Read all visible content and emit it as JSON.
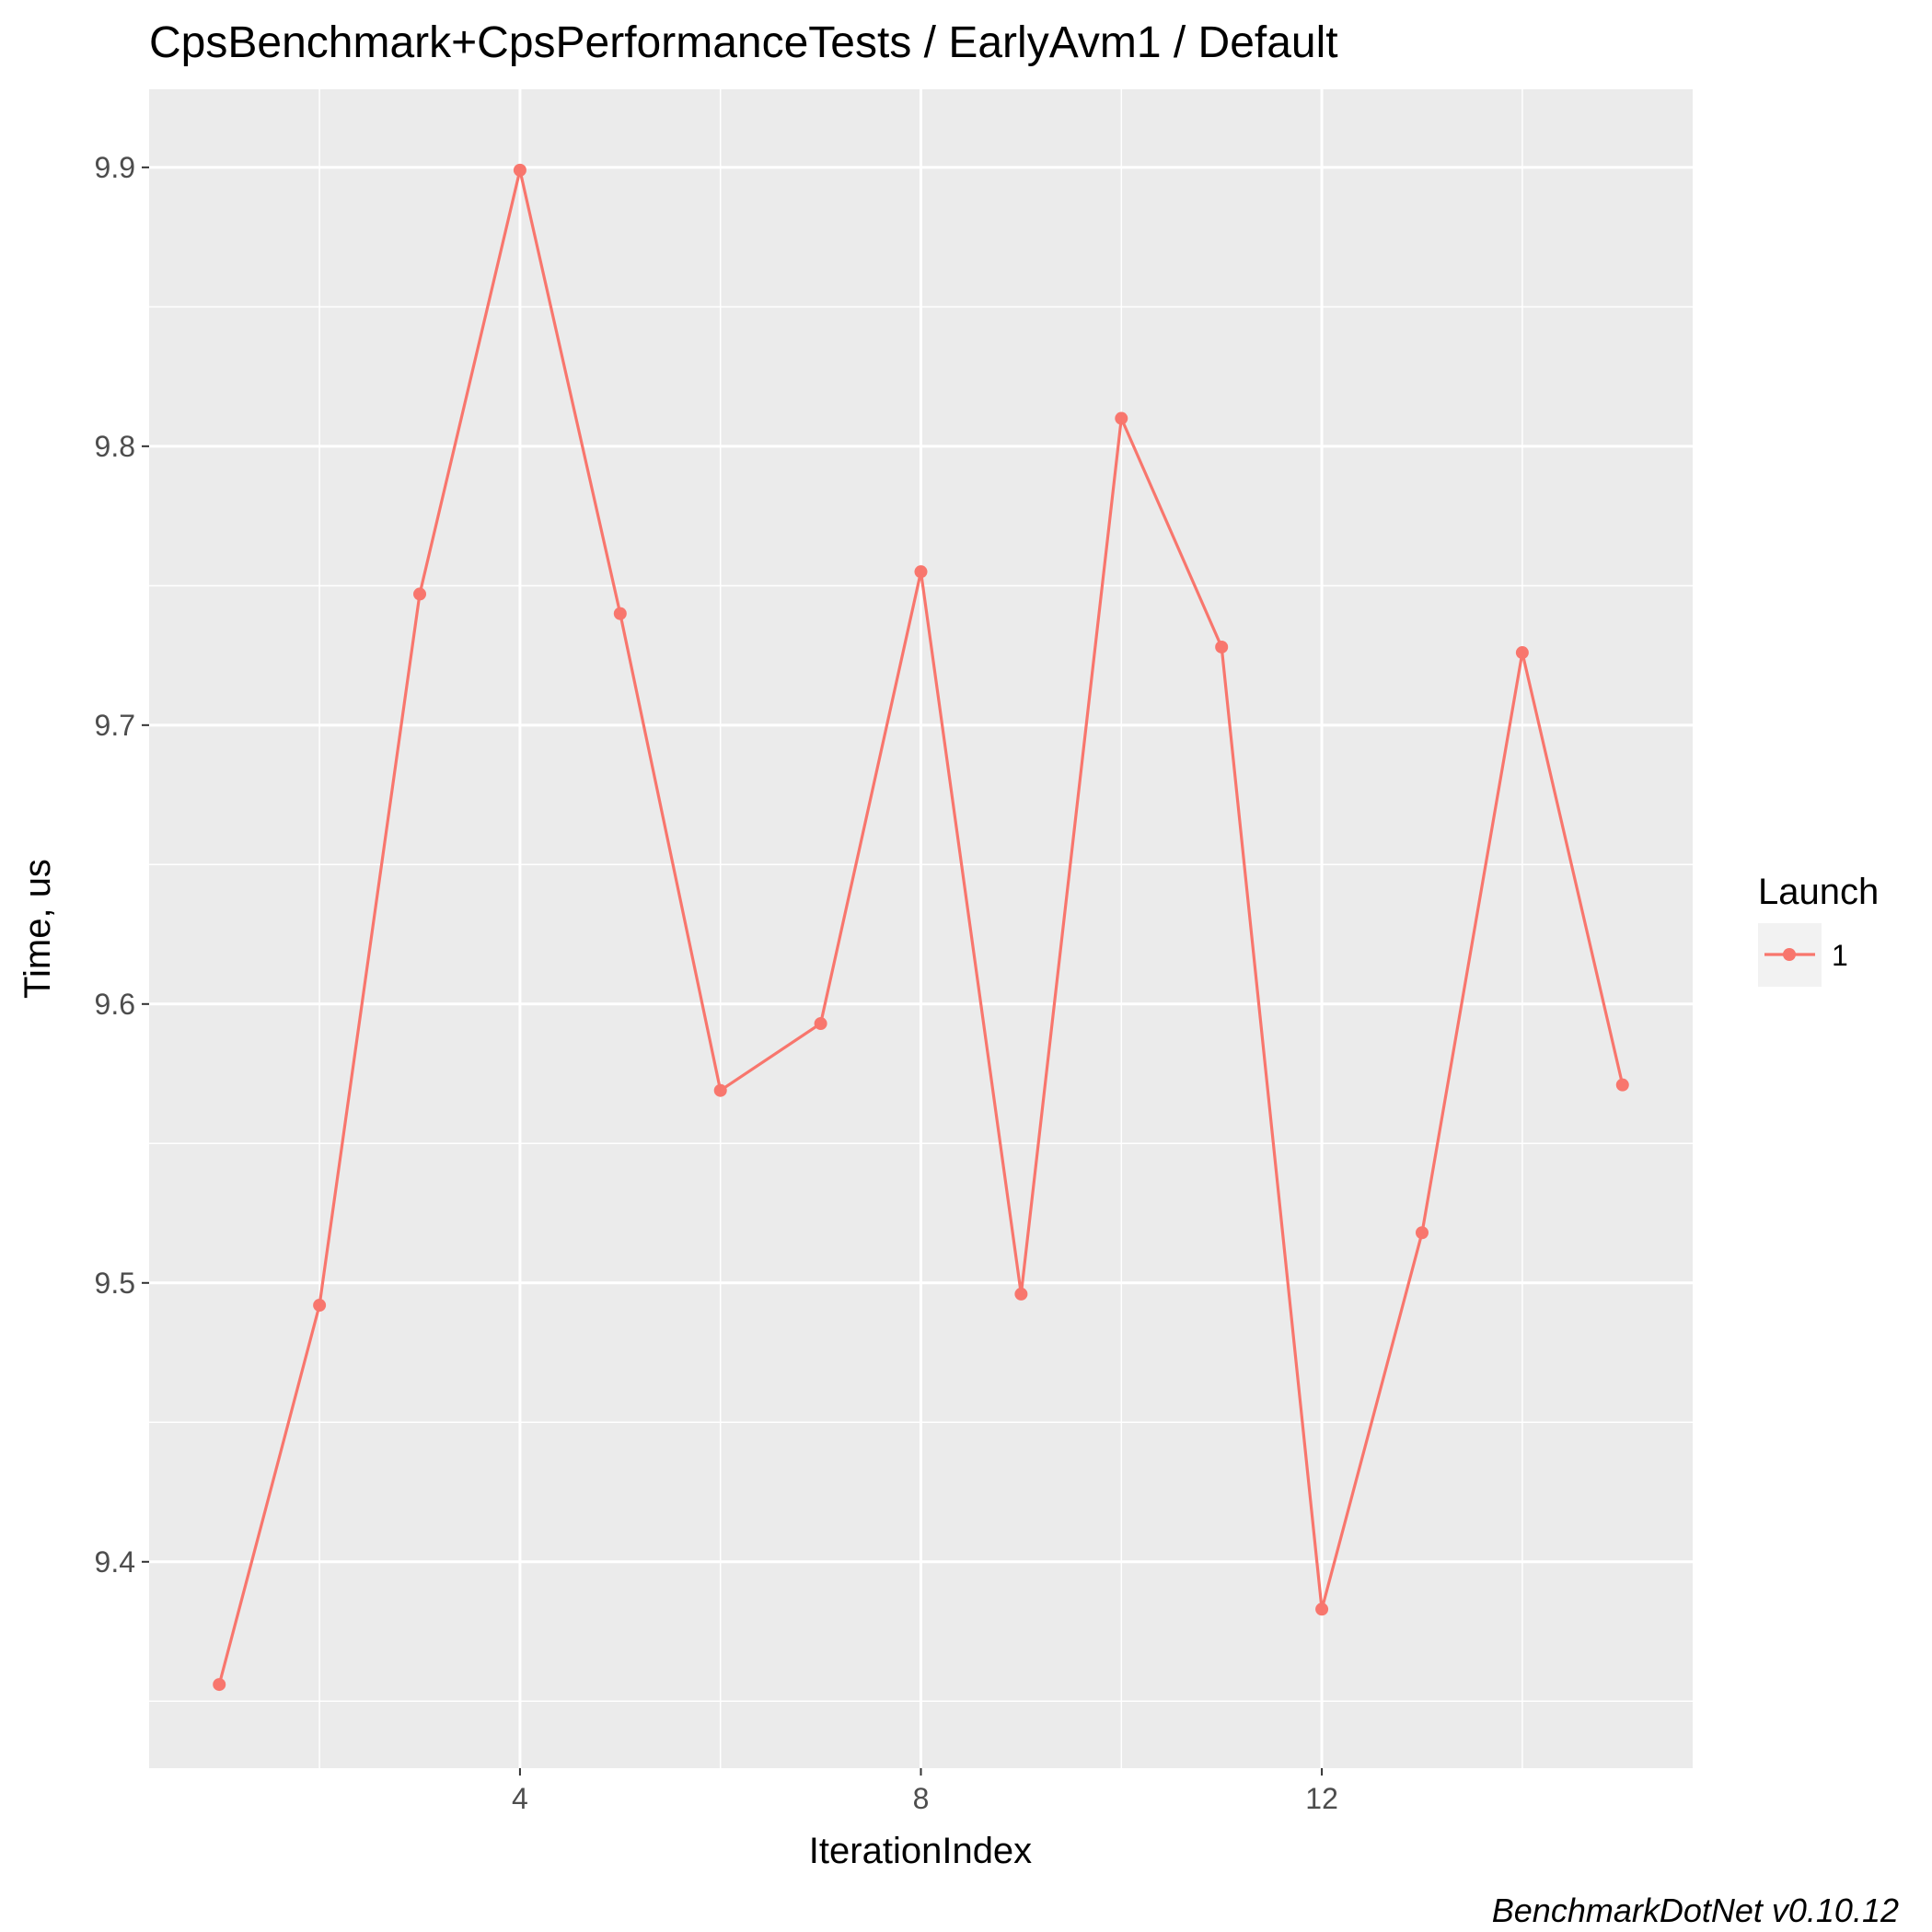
{
  "chart_data": {
    "type": "line",
    "title": "CpsBenchmark+CpsPerformanceTests / EarlyAvm1 / Default",
    "xlabel": "IterationIndex",
    "ylabel": "Time, us",
    "xlim": [
      0.3,
      15.7
    ],
    "ylim": [
      9.326,
      9.928
    ],
    "x_ticks": [
      4,
      8,
      12
    ],
    "x_tick_labels": [
      "4",
      "8",
      "12"
    ],
    "y_ticks": [
      9.4,
      9.5,
      9.6,
      9.7,
      9.8,
      9.9
    ],
    "y_tick_labels": [
      "9.4",
      "9.5",
      "9.6",
      "9.7",
      "9.8",
      "9.9"
    ],
    "grid": true,
    "legend": {
      "title": "Launch",
      "placement": "right"
    },
    "series": [
      {
        "name": "1",
        "color": "#f8766d",
        "x": [
          1,
          2,
          3,
          4,
          5,
          6,
          7,
          8,
          9,
          10,
          11,
          12,
          13,
          14,
          15
        ],
        "y": [
          9.356,
          9.492,
          9.747,
          9.899,
          9.74,
          9.569,
          9.593,
          9.755,
          9.496,
          9.81,
          9.728,
          9.383,
          9.518,
          9.726,
          9.571
        ]
      }
    ],
    "caption": "BenchmarkDotNet v0.10.12"
  },
  "colors": {
    "panel_background": "#ebebeb",
    "grid": "#ffffff",
    "series_1": "#f8766d"
  }
}
